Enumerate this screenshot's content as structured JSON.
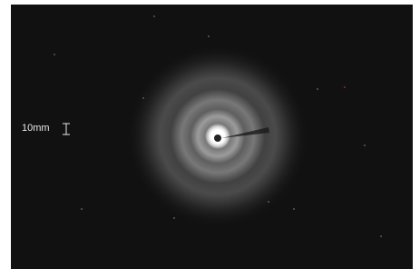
{
  "image": {
    "scale_bar": {
      "label": "10mm"
    }
  }
}
